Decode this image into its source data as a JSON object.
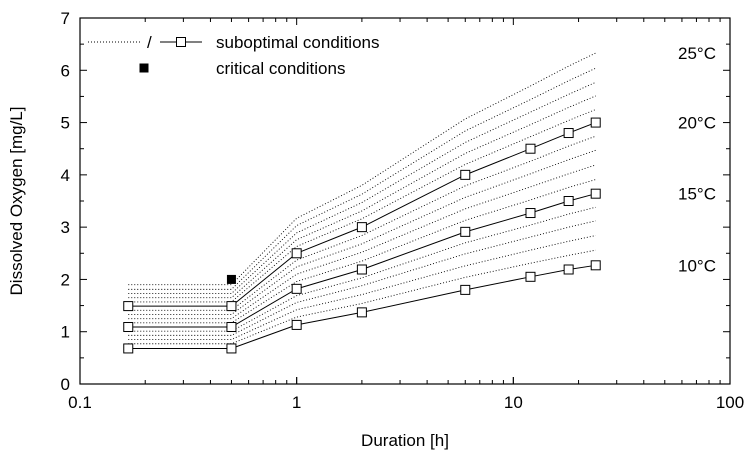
{
  "chart_data": {
    "type": "line",
    "xlabel": "Duration [h]",
    "ylabel": "Dissolved Oxygen [mg/L]",
    "xscale": "log",
    "xlim": [
      0.1,
      100
    ],
    "ylim": [
      0,
      7
    ],
    "xticks": [
      {
        "value": 0.1,
        "label": "0.1"
      },
      {
        "value": 1,
        "label": "1"
      },
      {
        "value": 10,
        "label": "10"
      },
      {
        "value": 100,
        "label": "100"
      }
    ],
    "yticks": [
      {
        "value": 0,
        "label": "0"
      },
      {
        "value": 1,
        "label": "1"
      },
      {
        "value": 2,
        "label": "2"
      },
      {
        "value": 3,
        "label": "3"
      },
      {
        "value": 4,
        "label": "4"
      },
      {
        "value": 5,
        "label": "5"
      },
      {
        "value": 6,
        "label": "6"
      },
      {
        "value": 7,
        "label": "7"
      }
    ],
    "legend": {
      "placement": "top-left",
      "entries": [
        {
          "symbol": "dotted / line-square",
          "separator": "/",
          "label": "suboptimal conditions"
        },
        {
          "symbol": "filled-square",
          "label": "critical conditions"
        }
      ]
    },
    "x": [
      0.167,
      0.5,
      1,
      2,
      6,
      12,
      18,
      24
    ],
    "series": [
      {
        "label": "10°C",
        "style": "solid-square",
        "values": [
          0.68,
          0.68,
          1.13,
          1.37,
          1.8,
          2.05,
          2.19,
          2.27
        ]
      },
      {
        "label": "15°C",
        "style": "solid-square",
        "values": [
          1.09,
          1.09,
          1.82,
          2.19,
          2.91,
          3.27,
          3.5,
          3.64
        ]
      },
      {
        "label": "20°C",
        "style": "solid-square",
        "values": [
          1.49,
          1.49,
          2.5,
          3.0,
          4.0,
          4.5,
          4.8,
          5.0
        ]
      },
      {
        "style": "dotted",
        "values": [
          0.77,
          0.77,
          1.28,
          1.54,
          2.04,
          2.31,
          2.46,
          2.56
        ]
      },
      {
        "style": "dotted",
        "values": [
          0.85,
          0.85,
          1.42,
          1.71,
          2.26,
          2.56,
          2.73,
          2.84
        ]
      },
      {
        "style": "dotted",
        "values": [
          0.93,
          0.93,
          1.56,
          1.88,
          2.49,
          2.81,
          3.0,
          3.12
        ]
      },
      {
        "style": "dotted",
        "values": [
          1.01,
          1.01,
          1.69,
          2.03,
          2.7,
          3.04,
          3.25,
          3.38
        ]
      },
      {
        "style": "dotted",
        "values": [
          1.17,
          1.17,
          1.96,
          2.35,
          3.13,
          3.52,
          3.76,
          3.91
        ]
      },
      {
        "style": "dotted",
        "values": [
          1.25,
          1.25,
          2.1,
          2.52,
          3.35,
          3.77,
          4.02,
          4.19
        ]
      },
      {
        "style": "dotted",
        "values": [
          1.33,
          1.33,
          2.24,
          2.68,
          3.57,
          4.02,
          4.29,
          4.47
        ]
      },
      {
        "style": "dotted",
        "values": [
          1.41,
          1.41,
          2.37,
          2.84,
          3.79,
          4.26,
          4.55,
          4.74
        ]
      },
      {
        "style": "dotted",
        "values": [
          1.57,
          1.57,
          2.63,
          3.16,
          4.2,
          4.73,
          5.04,
          5.25
        ]
      },
      {
        "style": "dotted",
        "values": [
          1.65,
          1.65,
          2.76,
          3.31,
          4.41,
          4.96,
          5.29,
          5.51
        ]
      },
      {
        "style": "dotted",
        "values": [
          1.73,
          1.73,
          2.89,
          3.47,
          4.62,
          5.2,
          5.54,
          5.77
        ]
      },
      {
        "style": "dotted",
        "values": [
          1.81,
          1.81,
          3.03,
          3.63,
          4.84,
          5.44,
          5.8,
          6.04
        ]
      },
      {
        "style": "dotted",
        "values": [
          1.9,
          1.9,
          3.17,
          3.8,
          5.07,
          5.7,
          6.08,
          6.33
        ]
      }
    ],
    "critical_point": {
      "x": 0.5,
      "y": 2.0
    },
    "annotations": [
      {
        "text": "25°C",
        "y": 6.33
      },
      {
        "text": "20°C",
        "y": 5.0
      },
      {
        "text": "15°C",
        "y": 3.64
      },
      {
        "text": "10°C",
        "y": 2.27
      }
    ]
  }
}
